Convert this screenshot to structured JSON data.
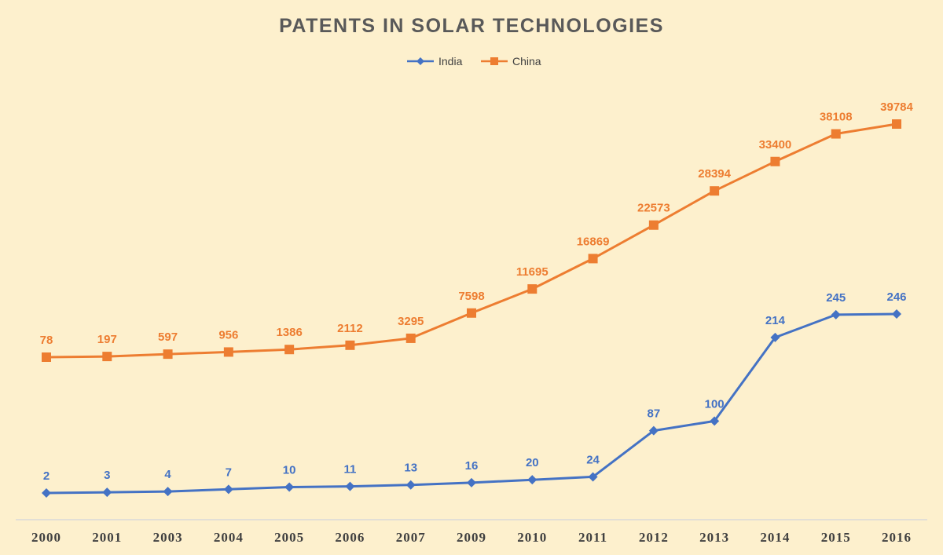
{
  "chart_data": {
    "type": "line",
    "title": "PATENTS IN SOLAR TECHNOLOGIES",
    "xlabel": "",
    "ylabel": "",
    "categories": [
      "2000",
      "2001",
      "2003",
      "2004",
      "2005",
      "2006",
      "2007",
      "2009",
      "2010",
      "2011",
      "2012",
      "2013",
      "2014",
      "2015",
      "2016"
    ],
    "series": [
      {
        "name": "India",
        "color": "#4472c4",
        "marker": "diamond",
        "values": [
          2,
          3,
          4,
          7,
          10,
          11,
          13,
          16,
          20,
          24,
          87,
          100,
          214,
          245,
          246
        ]
      },
      {
        "name": "China",
        "color": "#ed7d31",
        "marker": "square",
        "values": [
          78,
          197,
          597,
          956,
          1386,
          2112,
          3295,
          7598,
          11695,
          16869,
          22573,
          28394,
          33400,
          38108,
          39784
        ]
      }
    ],
    "legend_position": "top-center",
    "grid": false,
    "y_axis_visible": false
  }
}
